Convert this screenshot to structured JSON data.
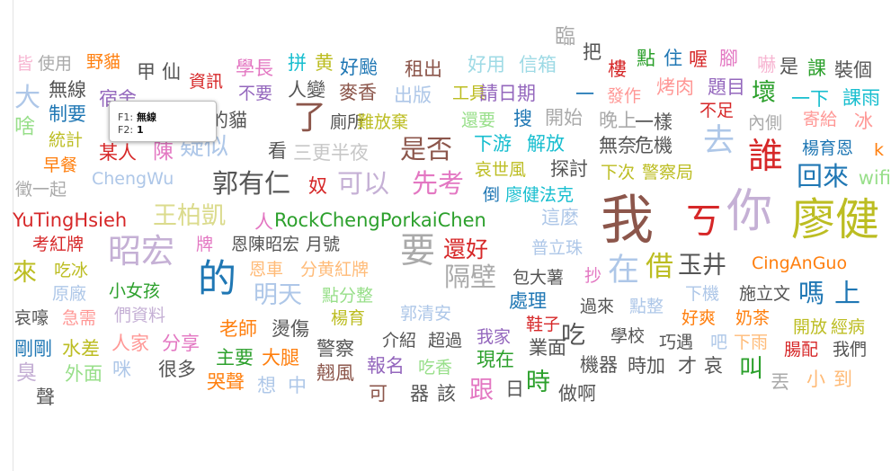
{
  "tooltip": {
    "f1_label": "F1:",
    "f1_value": "無線",
    "f2_label": "F2:",
    "f2_value": "1"
  },
  "words": [
    {
      "t": "臨",
      "c": "#aaaaaa",
      "s": 23
    },
    {
      "t": "把",
      "c": "#555555",
      "s": 21
    },
    {
      "t": "點",
      "c": "#2ca02c",
      "s": 21
    },
    {
      "t": "住",
      "c": "#1f77b4",
      "s": 21
    },
    {
      "t": "喔",
      "c": "#d62728",
      "s": 21
    },
    {
      "t": "腳",
      "c": "#e377c2",
      "s": 21
    },
    {
      "t": "嚇",
      "c": "#f7b6d2",
      "s": 21
    },
    {
      "t": "是",
      "c": "#555555",
      "s": 21
    },
    {
      "t": "課",
      "c": "#2ca02c",
      "s": 21
    },
    {
      "t": "裝個",
      "c": "#555555",
      "s": 21
    },
    {
      "t": "皆",
      "c": "#f7b6d2",
      "s": 19
    },
    {
      "t": "使用",
      "c": "#aaaaaa",
      "s": 19
    },
    {
      "t": "野貓",
      "c": "#ff7f0e",
      "s": 19
    },
    {
      "t": "甲",
      "c": "#555555",
      "s": 21
    },
    {
      "t": "仙",
      "c": "#555555",
      "s": 21
    },
    {
      "t": "學長",
      "c": "#e377c2",
      "s": 21
    },
    {
      "t": "拼",
      "c": "#17becf",
      "s": 21
    },
    {
      "t": "黄",
      "c": "#bcbd22",
      "s": 21
    },
    {
      "t": "好颱",
      "c": "#1f77b4",
      "s": 21
    },
    {
      "t": "租出",
      "c": "#8c564b",
      "s": 21
    },
    {
      "t": "好用",
      "c": "#9edae5",
      "s": 21
    },
    {
      "t": "信箱",
      "c": "#9edae5",
      "s": 21
    },
    {
      "t": "樓",
      "c": "#d62728",
      "s": 21
    },
    {
      "t": "資訊",
      "c": "#d62728",
      "s": 19
    },
    {
      "t": "大",
      "c": "#aec7e8",
      "s": 29
    },
    {
      "t": "無線",
      "c": "#555555",
      "s": 21
    },
    {
      "t": "人變",
      "c": "#555555",
      "s": 21
    },
    {
      "t": "不要",
      "c": "#9467bd",
      "s": 19
    },
    {
      "t": "麥香",
      "c": "#8c564b",
      "s": 21
    },
    {
      "t": "出版",
      "c": "#aec7e8",
      "s": 21
    },
    {
      "t": "工具",
      "c": "#bcbd22",
      "s": 19
    },
    {
      "t": "請日期",
      "c": "#9467bd",
      "s": 21
    },
    {
      "t": "一",
      "c": "#1f77b4",
      "s": 21
    },
    {
      "t": "發作",
      "c": "#ff9896",
      "s": 19
    },
    {
      "t": "烤肉",
      "c": "#ff9896",
      "s": 21
    },
    {
      "t": "題目",
      "c": "#9467bd",
      "s": 21
    },
    {
      "t": "壞",
      "c": "#2ca02c",
      "s": 27
    },
    {
      "t": "一下",
      "c": "#17becf",
      "s": 21
    },
    {
      "t": "課雨",
      "c": "#17becf",
      "s": 21
    },
    {
      "t": "制要",
      "c": "#1f77b4",
      "s": 21
    },
    {
      "t": "宿舍",
      "c": "#9467bd",
      "s": 21
    },
    {
      "t": "楊的貓",
      "c": "#555555",
      "s": 21
    },
    {
      "t": "了",
      "c": "#8c564b",
      "s": 37
    },
    {
      "t": "廁所",
      "c": "#555555",
      "s": 19
    },
    {
      "t": "難放棄",
      "c": "#bcbd22",
      "s": 19
    },
    {
      "t": "還要",
      "c": "#98df8a",
      "s": 19
    },
    {
      "t": "搜",
      "c": "#1f77b4",
      "s": 21
    },
    {
      "t": "開始",
      "c": "#aaaaaa",
      "s": 21
    },
    {
      "t": "晚上",
      "c": "#aaaaaa",
      "s": 21
    },
    {
      "t": "一樣",
      "c": "#555555",
      "s": 21
    },
    {
      "t": "不足",
      "c": "#d62728",
      "s": 19
    },
    {
      "t": "內側",
      "c": "#aaaaaa",
      "s": 19
    },
    {
      "t": "寄給",
      "c": "#ff9896",
      "s": 19
    },
    {
      "t": "冰",
      "c": "#ff9896",
      "s": 21
    },
    {
      "t": "啥",
      "c": "#98df8a",
      "s": 23
    },
    {
      "t": "統計",
      "c": "#bcbd22",
      "s": 19
    },
    {
      "t": "某人",
      "c": "#d62728",
      "s": 21
    },
    {
      "t": "陳",
      "c": "#e377c2",
      "s": 23
    },
    {
      "t": "疑似",
      "c": "#aec7e8",
      "s": 27
    },
    {
      "t": "看",
      "c": "#555555",
      "s": 21
    },
    {
      "t": "三更半夜",
      "c": "#c7c7c7",
      "s": 21
    },
    {
      "t": "是否",
      "c": "#8c564b",
      "s": 29
    },
    {
      "t": "下游",
      "c": "#17becf",
      "s": 21
    },
    {
      "t": "解放",
      "c": "#17becf",
      "s": 21
    },
    {
      "t": "無奈",
      "c": "#555555",
      "s": 21
    },
    {
      "t": "危機",
      "c": "#555555",
      "s": 21
    },
    {
      "t": "去",
      "c": "#aec7e8",
      "s": 35
    },
    {
      "t": "誰",
      "c": "#d62728",
      "s": 39
    },
    {
      "t": "楊育恩",
      "c": "#1f77b4",
      "s": 19
    },
    {
      "t": "k",
      "c": "#ff7f0e",
      "s": 19
    },
    {
      "t": "早餐",
      "c": "#ff7f0e",
      "s": 19
    },
    {
      "t": "哀世風",
      "c": "#bcbd22",
      "s": 19
    },
    {
      "t": "探討",
      "c": "#555555",
      "s": 21
    },
    {
      "t": "下次",
      "c": "#bcbd22",
      "s": 19
    },
    {
      "t": "警察局",
      "c": "#bcbd22",
      "s": 19
    },
    {
      "t": "回來",
      "c": "#1f77b4",
      "s": 29
    },
    {
      "t": "wifi",
      "c": "#98df8a",
      "s": 21
    },
    {
      "t": "徵一起",
      "c": "#aaaaaa",
      "s": 19
    },
    {
      "t": "ChengWu",
      "c": "#aec7e8",
      "s": 19
    },
    {
      "t": "郭有仁",
      "c": "#555555",
      "s": 29
    },
    {
      "t": "奴",
      "c": "#d62728",
      "s": 21
    },
    {
      "t": "可以",
      "c": "#c5b0d5",
      "s": 29
    },
    {
      "t": "先考",
      "c": "#e377c2",
      "s": 29
    },
    {
      "t": "倒",
      "c": "#1f77b4",
      "s": 19
    },
    {
      "t": "廖健法克",
      "c": "#17becf",
      "s": 19
    },
    {
      "t": "我",
      "c": "#8c564b",
      "s": 59
    },
    {
      "t": "ㄎ",
      "c": "#d62728",
      "s": 41
    },
    {
      "t": "你",
      "c": "#c5b0d5",
      "s": 51
    },
    {
      "t": "廖健",
      "c": "#bcbd22",
      "s": 49
    },
    {
      "t": "YuTingHsieh",
      "c": "#d62728",
      "s": 21
    },
    {
      "t": "王柏凱",
      "c": "#dbdb8d",
      "s": 27
    },
    {
      "t": "人",
      "c": "#e377c2",
      "s": 21
    },
    {
      "t": "RockChengPorkaiChen",
      "c": "#2ca02c",
      "s": 21
    },
    {
      "t": "這麼",
      "c": "#aec7e8",
      "s": 21
    },
    {
      "t": "考紅牌",
      "c": "#d62728",
      "s": 19
    },
    {
      "t": "昭宏",
      "c": "#c5b0d5",
      "s": 37
    },
    {
      "t": "牌",
      "c": "#e377c2",
      "s": 19
    },
    {
      "t": "恩陳昭宏",
      "c": "#555555",
      "s": 19
    },
    {
      "t": "月號",
      "c": "#555555",
      "s": 19
    },
    {
      "t": "要",
      "c": "#aaaaaa",
      "s": 39
    },
    {
      "t": "還好",
      "c": "#d62728",
      "s": 25
    },
    {
      "t": "普立珠",
      "c": "#aec7e8",
      "s": 19
    },
    {
      "t": "CingAnGuo",
      "c": "#ff7f0e",
      "s": 19
    },
    {
      "t": "來",
      "c": "#bcbd22",
      "s": 27
    },
    {
      "t": "吃冰",
      "c": "#bcbd22",
      "s": 19
    },
    {
      "t": "恩車",
      "c": "#ffbb78",
      "s": 19
    },
    {
      "t": "分黄紅牌",
      "c": "#ffbb78",
      "s": 19
    },
    {
      "t": "隔壁",
      "c": "#aaaaaa",
      "s": 29
    },
    {
      "t": "包大薯",
      "c": "#555555",
      "s": 19
    },
    {
      "t": "抄",
      "c": "#e377c2",
      "s": 19
    },
    {
      "t": "在",
      "c": "#aec7e8",
      "s": 35
    },
    {
      "t": "借",
      "c": "#bcbd22",
      "s": 31
    },
    {
      "t": "玉井",
      "c": "#555555",
      "s": 27
    },
    {
      "t": "原廠",
      "c": "#aec7e8",
      "s": 19
    },
    {
      "t": "的",
      "c": "#1f77b4",
      "s": 43
    },
    {
      "t": "明天",
      "c": "#aec7e8",
      "s": 27
    },
    {
      "t": "點分整",
      "c": "#98df8a",
      "s": 19
    },
    {
      "t": "處理",
      "c": "#1f77b4",
      "s": 21
    },
    {
      "t": "下機",
      "c": "#aec7e8",
      "s": 19
    },
    {
      "t": "施立文",
      "c": "#555555",
      "s": 19
    },
    {
      "t": "嗎",
      "c": "#1f77b4",
      "s": 29
    },
    {
      "t": "上",
      "c": "#1f77b4",
      "s": 29
    },
    {
      "t": "小女孩",
      "c": "#2ca02c",
      "s": 19
    },
    {
      "t": "們資料",
      "c": "#c5b0d5",
      "s": 19
    },
    {
      "t": "楊育",
      "c": "#bcbd22",
      "s": 19
    },
    {
      "t": "郭清安",
      "c": "#aec7e8",
      "s": 19
    },
    {
      "t": "鞋子",
      "c": "#d62728",
      "s": 19
    },
    {
      "t": "過來",
      "c": "#555555",
      "s": 19
    },
    {
      "t": "點整",
      "c": "#aec7e8",
      "s": 19
    },
    {
      "t": "好爽",
      "c": "#ff7f0e",
      "s": 19
    },
    {
      "t": "奶茶",
      "c": "#ff7f0e",
      "s": 19
    },
    {
      "t": "開放",
      "c": "#bcbd22",
      "s": 19
    },
    {
      "t": "經病",
      "c": "#bcbd22",
      "s": 19
    },
    {
      "t": "哀嚎",
      "c": "#555555",
      "s": 19
    },
    {
      "t": "急需",
      "c": "#ff9896",
      "s": 19
    },
    {
      "t": "人家",
      "c": "#ff9896",
      "s": 21
    },
    {
      "t": "分享",
      "c": "#e377c2",
      "s": 21
    },
    {
      "t": "老師",
      "c": "#ff7f0e",
      "s": 21
    },
    {
      "t": "燙傷",
      "c": "#555555",
      "s": 21
    },
    {
      "t": "介紹",
      "c": "#555555",
      "s": 19
    },
    {
      "t": "超過",
      "c": "#555555",
      "s": 19
    },
    {
      "t": "我家",
      "c": "#9467bd",
      "s": 19
    },
    {
      "t": "業面",
      "c": "#555555",
      "s": 21
    },
    {
      "t": "吃",
      "c": "#555555",
      "s": 27
    },
    {
      "t": "學校",
      "c": "#555555",
      "s": 19
    },
    {
      "t": "巧遇",
      "c": "#555555",
      "s": 19
    },
    {
      "t": "吧",
      "c": "#aec7e8",
      "s": 19
    },
    {
      "t": "下雨",
      "c": "#ffbb78",
      "s": 19
    },
    {
      "t": "腸配",
      "c": "#d62728",
      "s": 19
    },
    {
      "t": "我們",
      "c": "#555555",
      "s": 19
    },
    {
      "t": "剛剛",
      "c": "#1f77b4",
      "s": 21
    },
    {
      "t": "水差",
      "c": "#bcbd22",
      "s": 21
    },
    {
      "t": "主要",
      "c": "#2ca02c",
      "s": 21
    },
    {
      "t": "大腿",
      "c": "#ff7f0e",
      "s": 21
    },
    {
      "t": "警察",
      "c": "#555555",
      "s": 21
    },
    {
      "t": "報名",
      "c": "#9467bd",
      "s": 21
    },
    {
      "t": "吃香",
      "c": "#98df8a",
      "s": 19
    },
    {
      "t": "現在",
      "c": "#2ca02c",
      "s": 21
    },
    {
      "t": "機器",
      "c": "#555555",
      "s": 21
    },
    {
      "t": "時加",
      "c": "#555555",
      "s": 21
    },
    {
      "t": "才",
      "c": "#555555",
      "s": 21
    },
    {
      "t": "哀",
      "c": "#555555",
      "s": 21
    },
    {
      "t": "叫",
      "c": "#2ca02c",
      "s": 27
    },
    {
      "t": "丟",
      "c": "#aaaaaa",
      "s": 21
    },
    {
      "t": "小",
      "c": "#ffbb78",
      "s": 21
    },
    {
      "t": "到",
      "c": "#ffbb78",
      "s": 21
    },
    {
      "t": "臭",
      "c": "#c5b0d5",
      "s": 23
    },
    {
      "t": "外面",
      "c": "#98df8a",
      "s": 21
    },
    {
      "t": "咪",
      "c": "#aec7e8",
      "s": 21
    },
    {
      "t": "很多",
      "c": "#555555",
      "s": 21
    },
    {
      "t": "哭聲",
      "c": "#ff7f0e",
      "s": 21
    },
    {
      "t": "想",
      "c": "#aec7e8",
      "s": 21
    },
    {
      "t": "中",
      "c": "#aec7e8",
      "s": 21
    },
    {
      "t": "翹風",
      "c": "#8c564b",
      "s": 21
    },
    {
      "t": "可",
      "c": "#8c564b",
      "s": 21
    },
    {
      "t": "器",
      "c": "#555555",
      "s": 21
    },
    {
      "t": "該",
      "c": "#555555",
      "s": 21
    },
    {
      "t": "跟",
      "c": "#e377c2",
      "s": 27
    },
    {
      "t": "日",
      "c": "#555555",
      "s": 21
    },
    {
      "t": "時",
      "c": "#2ca02c",
      "s": 27
    },
    {
      "t": "做啊",
      "c": "#555555",
      "s": 21
    },
    {
      "t": "聲",
      "c": "#555555",
      "s": 21
    }
  ]
}
